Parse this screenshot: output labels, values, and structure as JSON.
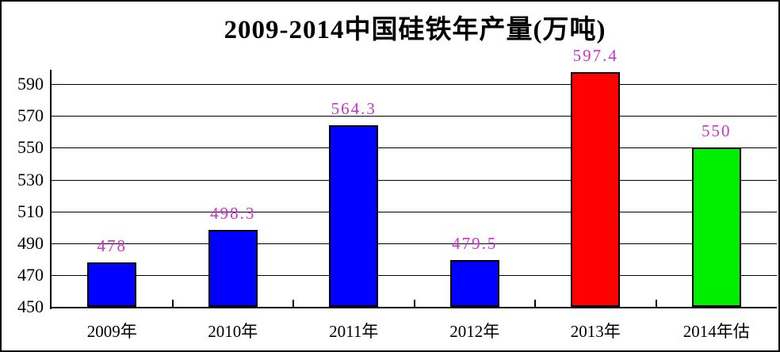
{
  "figure": {
    "background": "#FFFFFF",
    "border_color": "#000000"
  },
  "chart_data": {
    "type": "bar",
    "title": "2009-2014中国硅铁年产量(万吨)",
    "categories": [
      "2009年",
      "2010年",
      "2011年",
      "2012年",
      "2013年",
      "2014年估"
    ],
    "values": [
      478,
      498.3,
      564.3,
      479.5,
      597.4,
      550
    ],
    "value_labels": [
      "478",
      "498.3",
      "564.3",
      "479.5",
      "597.4",
      "550"
    ],
    "bar_colors": [
      "#0000FF",
      "#0000FF",
      "#0000FF",
      "#0000FF",
      "#FF0000",
      "#00EE00"
    ],
    "bar_border_color": "#000000",
    "value_label_color": "#CC33CC",
    "axis_color": "#000000",
    "gridline_color": "#000000",
    "grid": true,
    "ylim": [
      450,
      600
    ],
    "yticks": [
      450,
      470,
      490,
      510,
      530,
      550,
      570,
      590
    ],
    "xlabel": "",
    "ylabel": "",
    "legend_position": "none"
  }
}
